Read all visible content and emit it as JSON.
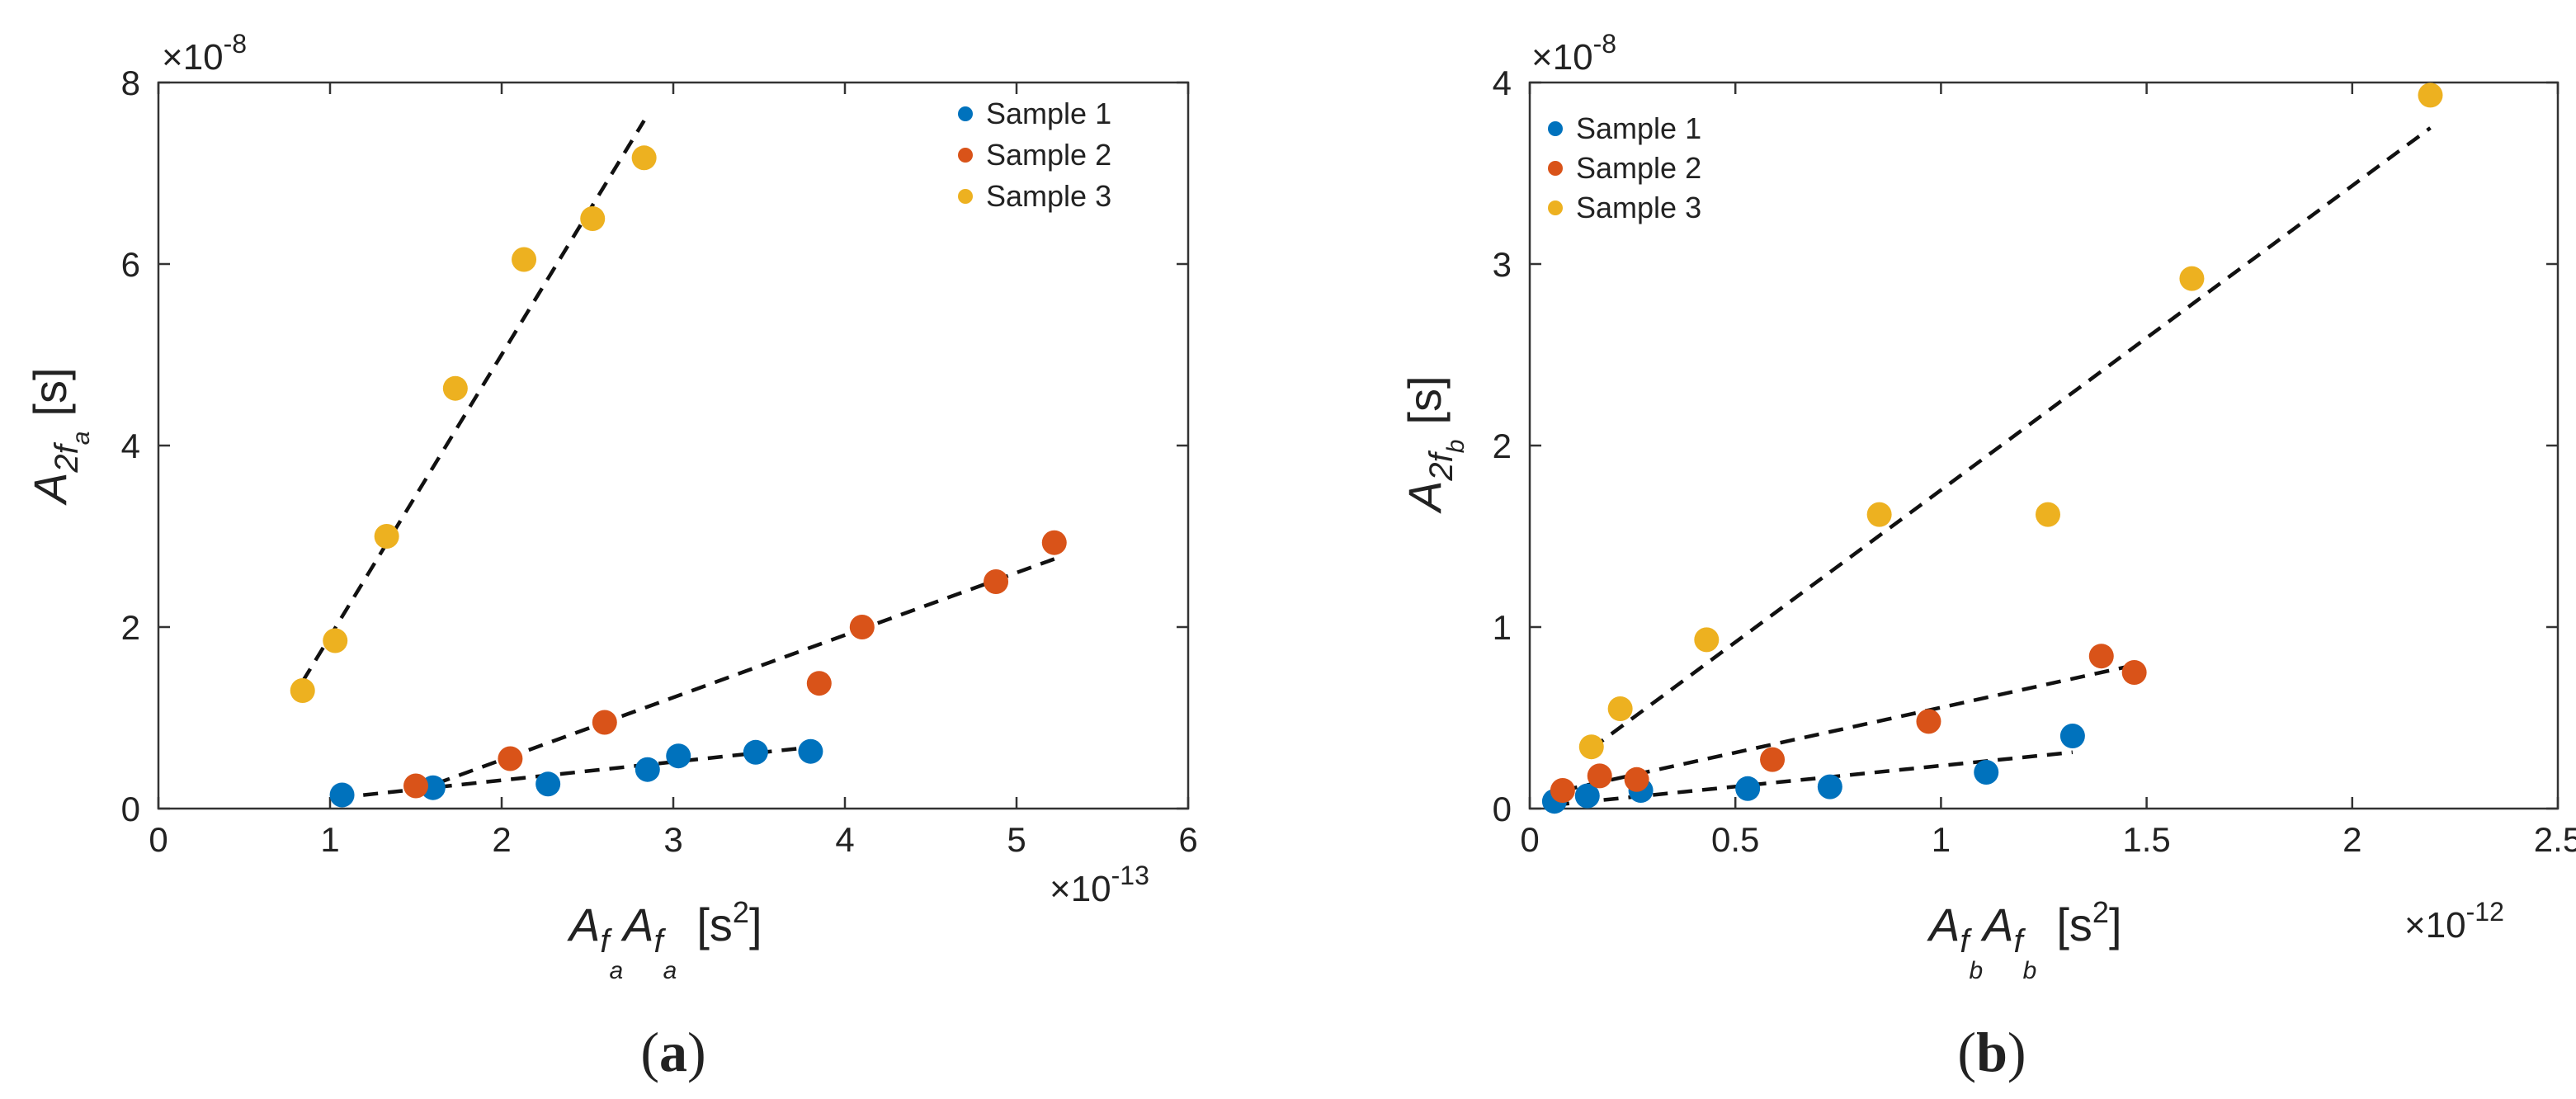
{
  "chart_data": [
    {
      "type": "scatter",
      "panel_label": "a",
      "xlim": [
        0,
        6
      ],
      "ylim": [
        0,
        8
      ],
      "xticks": [
        "0",
        "1",
        "2",
        "3",
        "4",
        "5",
        "6"
      ],
      "yticks": [
        "0",
        "2",
        "4",
        "6",
        "8"
      ],
      "x_multiplier": {
        "base": "×10",
        "exp": "-13"
      },
      "y_multiplier": {
        "base": "×10",
        "exp": "-8"
      },
      "xlabel": {
        "main": "A",
        "sub1": "f",
        "subsub1": "a",
        "main2": "A",
        "sub2": "f",
        "subsub2": "a",
        "unit": "[s",
        "unit_sup": "2",
        "unit_close": "]"
      },
      "ylabel": {
        "main": "A",
        "sub": "2f",
        "subsub": "a",
        "unit": "[s]"
      },
      "legend_position": "top-right",
      "series": [
        {
          "name": "Sample 1",
          "color": "#0072BD",
          "points": [
            [
              1.07,
              0.15
            ],
            [
              1.6,
              0.23
            ],
            [
              2.27,
              0.27
            ],
            [
              2.85,
              0.43
            ],
            [
              3.03,
              0.58
            ],
            [
              3.48,
              0.62
            ],
            [
              3.8,
              0.63
            ]
          ],
          "fit": [
            [
              1.05,
              0.12
            ],
            [
              3.82,
              0.68
            ]
          ]
        },
        {
          "name": "Sample 2",
          "color": "#D95319",
          "points": [
            [
              1.5,
              0.25
            ],
            [
              2.05,
              0.55
            ],
            [
              2.6,
              0.95
            ],
            [
              3.85,
              1.38
            ],
            [
              4.1,
              2.0
            ],
            [
              4.88,
              2.5
            ],
            [
              5.22,
              2.93
            ]
          ],
          "fit": [
            [
              1.48,
              0.18
            ],
            [
              5.22,
              2.75
            ]
          ]
        },
        {
          "name": "Sample 3",
          "color": "#EDB120",
          "points": [
            [
              0.84,
              1.3
            ],
            [
              1.03,
              1.85
            ],
            [
              1.33,
              3.0
            ],
            [
              1.73,
              4.63
            ],
            [
              2.13,
              6.05
            ],
            [
              2.53,
              6.5
            ],
            [
              2.83,
              7.17
            ]
          ],
          "fit": [
            [
              0.84,
              1.4
            ],
            [
              2.83,
              7.58
            ]
          ]
        }
      ]
    },
    {
      "type": "scatter",
      "panel_label": "b",
      "xlim": [
        0,
        2.5
      ],
      "ylim": [
        0,
        4
      ],
      "xticks": [
        "0",
        "0.5",
        "1",
        "1.5",
        "2",
        "2.5"
      ],
      "yticks": [
        "0",
        "1",
        "2",
        "3",
        "4"
      ],
      "x_multiplier": {
        "base": "×10",
        "exp": "-12"
      },
      "y_multiplier": {
        "base": "×10",
        "exp": "-8"
      },
      "xlabel": {
        "main": "A",
        "sub1": "f",
        "subsub1": "b",
        "main2": "A",
        "sub2": "f",
        "subsub2": "b",
        "unit": "[s",
        "unit_sup": "2",
        "unit_close": "]"
      },
      "ylabel": {
        "main": "A",
        "sub": "2f",
        "subsub": "b",
        "unit": "[s]"
      },
      "legend_position": "top-left",
      "series": [
        {
          "name": "Sample 1",
          "color": "#0072BD",
          "points": [
            [
              0.06,
              0.04
            ],
            [
              0.14,
              0.07
            ],
            [
              0.27,
              0.1
            ],
            [
              0.53,
              0.11
            ],
            [
              0.73,
              0.12
            ],
            [
              1.11,
              0.2
            ],
            [
              1.32,
              0.4
            ]
          ],
          "fit": [
            [
              0.06,
              0.02
            ],
            [
              1.32,
              0.31
            ]
          ]
        },
        {
          "name": "Sample 2",
          "color": "#D95319",
          "points": [
            [
              0.08,
              0.1
            ],
            [
              0.17,
              0.18
            ],
            [
              0.26,
              0.16
            ],
            [
              0.59,
              0.27
            ],
            [
              0.97,
              0.48
            ],
            [
              1.39,
              0.84
            ],
            [
              1.47,
              0.75
            ]
          ],
          "fit": [
            [
              0.08,
              0.1
            ],
            [
              1.47,
              0.79
            ]
          ]
        },
        {
          "name": "Sample 3",
          "color": "#EDB120",
          "points": [
            [
              0.15,
              0.34
            ],
            [
              0.22,
              0.55
            ],
            [
              0.43,
              0.93
            ],
            [
              0.85,
              1.62
            ],
            [
              1.26,
              1.62
            ],
            [
              1.61,
              2.92
            ],
            [
              2.19,
              3.93
            ]
          ],
          "fit": [
            [
              0.15,
              0.33
            ],
            [
              2.19,
              3.75
            ]
          ]
        }
      ]
    }
  ]
}
